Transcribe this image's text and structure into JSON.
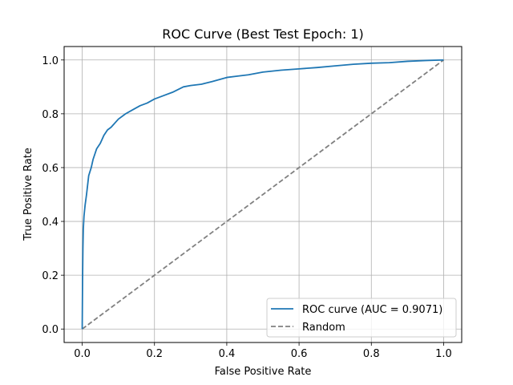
{
  "chart_data": {
    "type": "line",
    "title": "ROC Curve (Best Test Epoch: 1)",
    "xlabel": "False Positive Rate",
    "ylabel": "True Positive Rate",
    "xlim": [
      -0.05,
      1.05
    ],
    "ylim": [
      -0.05,
      1.05
    ],
    "xticks": [
      "0.0",
      "0.2",
      "0.4",
      "0.6",
      "0.8",
      "1.0"
    ],
    "yticks": [
      "0.0",
      "0.2",
      "0.4",
      "0.6",
      "0.8",
      "1.0"
    ],
    "grid": true,
    "legend_position": "lower-right",
    "series": [
      {
        "name": "ROC curve (AUC = 0.9071)",
        "color": "#1f77b4",
        "style": "solid",
        "x": [
          0,
          0.001,
          0.002,
          0.003,
          0.005,
          0.008,
          0.012,
          0.018,
          0.025,
          0.03,
          0.04,
          0.05,
          0.06,
          0.07,
          0.08,
          0.1,
          0.12,
          0.14,
          0.16,
          0.18,
          0.2,
          0.22,
          0.25,
          0.28,
          0.3,
          0.33,
          0.36,
          0.4,
          0.43,
          0.46,
          0.5,
          0.55,
          0.6,
          0.65,
          0.7,
          0.75,
          0.8,
          0.85,
          0.9,
          0.95,
          1.0
        ],
        "y": [
          0,
          0.18,
          0.3,
          0.37,
          0.42,
          0.46,
          0.5,
          0.57,
          0.6,
          0.63,
          0.67,
          0.69,
          0.72,
          0.74,
          0.75,
          0.78,
          0.8,
          0.815,
          0.83,
          0.84,
          0.855,
          0.865,
          0.88,
          0.9,
          0.905,
          0.91,
          0.92,
          0.935,
          0.94,
          0.945,
          0.955,
          0.962,
          0.967,
          0.972,
          0.978,
          0.984,
          0.988,
          0.99,
          0.995,
          0.998,
          1.0
        ]
      },
      {
        "name": "Random",
        "color": "#808080",
        "style": "dashed",
        "x": [
          0,
          1
        ],
        "y": [
          0,
          1
        ]
      }
    ]
  }
}
